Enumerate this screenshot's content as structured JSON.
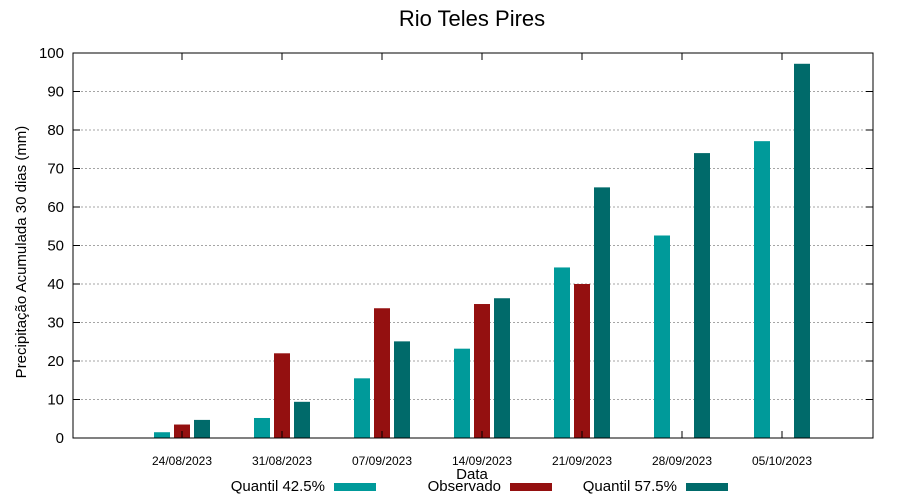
{
  "chart_data": {
    "type": "bar",
    "title": "Rio Teles Pires",
    "xlabel": "Data",
    "ylabel": "Precipitação Acumulada 30 dias (mm)",
    "ylim": [
      0,
      100
    ],
    "yticks": [
      0,
      10,
      20,
      30,
      40,
      50,
      60,
      70,
      80,
      90,
      100
    ],
    "grid": true,
    "legend_position": "bottom",
    "categories": [
      "24/08/2023",
      "31/08/2023",
      "07/09/2023",
      "14/09/2023",
      "21/09/2023",
      "28/09/2023",
      "05/10/2023"
    ],
    "series": [
      {
        "name": "Quantil 42.5%",
        "color": "#009a9a",
        "values": [
          1.5,
          5.2,
          15.5,
          23.2,
          44.3,
          52.6,
          77.1
        ]
      },
      {
        "name": "Observado",
        "color": "#941010",
        "values": [
          3.5,
          22.0,
          33.7,
          34.8,
          40.0,
          null,
          null
        ]
      },
      {
        "name": "Quantil 57.5%",
        "color": "#006a6a",
        "values": [
          4.7,
          9.4,
          25.1,
          36.3,
          65.1,
          74.0,
          97.2
        ]
      }
    ]
  }
}
